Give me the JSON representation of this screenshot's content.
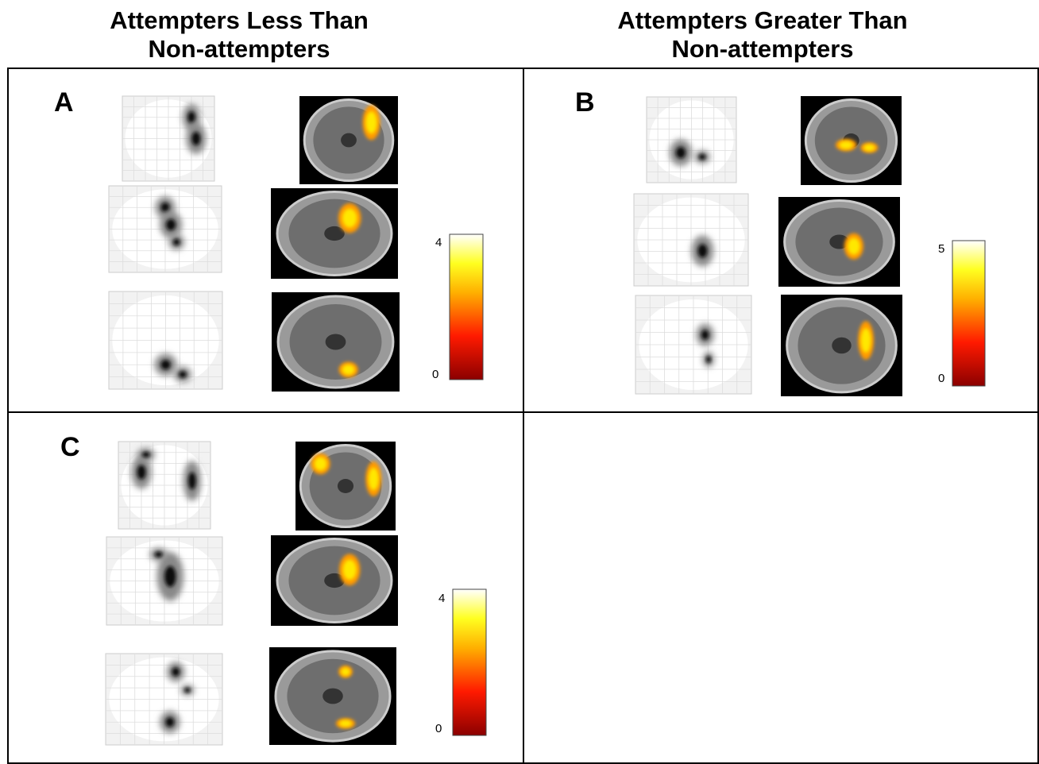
{
  "header": {
    "left": "Attempters Less Than\nNon-attempters",
    "right": "Attempters Greater Than\nNon-attempters"
  },
  "panels": [
    {
      "label": "A",
      "colorbar": {
        "max": "4",
        "min": "0"
      }
    },
    {
      "label": "B",
      "colorbar": {
        "max": "5",
        "min": "0"
      }
    },
    {
      "label": "C",
      "colorbar": {
        "max": "4",
        "min": "0"
      }
    }
  ]
}
